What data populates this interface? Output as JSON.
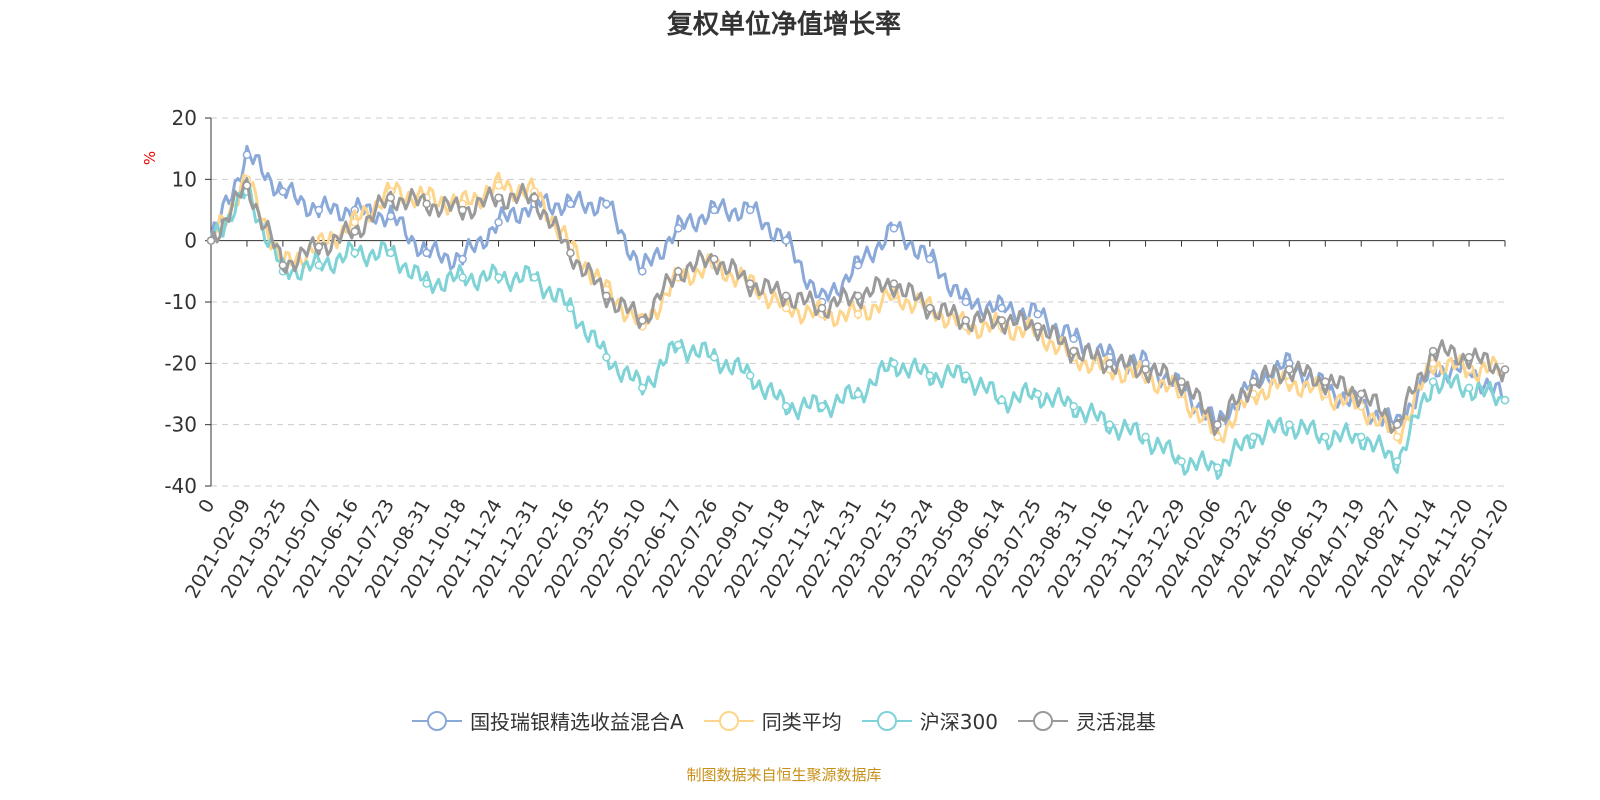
{
  "footer": "制图数据来自恒生聚源数据库",
  "chart_data": {
    "type": "line",
    "title": "复权单位净值增长率",
    "ylabel": "%",
    "ylim": [
      -40,
      20
    ],
    "yticks": [
      20,
      10,
      0,
      -10,
      -20,
      -30,
      -40
    ],
    "grid": true,
    "legend_position": "bottom",
    "categories": [
      "0",
      "2021-02-09",
      "2021-03-25",
      "2021-05-07",
      "2021-06-16",
      "2021-07-23",
      "2021-08-31",
      "2021-10-18",
      "2021-11-24",
      "2021-12-31",
      "2022-02-16",
      "2022-03-25",
      "2022-05-10",
      "2022-06-17",
      "2022-07-26",
      "2022-09-01",
      "2022-10-18",
      "2022-11-24",
      "2022-12-31",
      "2023-02-15",
      "2023-03-24",
      "2023-05-08",
      "2023-06-14",
      "2023-07-25",
      "2023-08-31",
      "2023-10-16",
      "2023-11-22",
      "2023-12-29",
      "2024-02-06",
      "2024-03-22",
      "2024-05-06",
      "2024-06-13",
      "2024-07-19",
      "2024-08-27",
      "2024-10-14",
      "2024-11-20",
      "2025-01-20"
    ],
    "series": [
      {
        "name": "国投瑞银精选收益混合A",
        "color": "#8aa9d9",
        "values": [
          0,
          14,
          8,
          5,
          5,
          4,
          -2,
          -3,
          3,
          6,
          6,
          6,
          -5,
          2,
          5,
          5,
          0,
          -10,
          -4,
          2,
          -3,
          -10,
          -11,
          -12,
          -16,
          -19,
          -20,
          -24,
          -30,
          -23,
          -20,
          -24,
          -27,
          -30,
          -21,
          -21,
          -26
        ]
      },
      {
        "name": "同类平均",
        "color": "#fdd58c",
        "values": [
          0,
          10,
          -4,
          -1,
          3,
          8,
          7,
          6,
          9,
          8,
          -1,
          -8,
          -14,
          -6,
          -4,
          -7,
          -11,
          -12,
          -12,
          -9,
          -11,
          -14,
          -14,
          -15,
          -19,
          -21,
          -22,
          -25,
          -32,
          -25,
          -23,
          -25,
          -27,
          -32,
          -20,
          -21,
          -21
        ]
      },
      {
        "name": "沪深300",
        "color": "#7fd3d6",
        "values": [
          0,
          8,
          -5,
          -4,
          -2,
          -2,
          -7,
          -6,
          -6,
          -6,
          -11,
          -19,
          -24,
          -17,
          -19,
          -22,
          -27,
          -27,
          -25,
          -20,
          -22,
          -22,
          -26,
          -25,
          -27,
          -30,
          -32,
          -36,
          -37,
          -32,
          -30,
          -32,
          -32,
          -36,
          -23,
          -24,
          -26
        ]
      },
      {
        "name": "灵活混基",
        "color": "#9a9a9a",
        "values": [
          0,
          9,
          -4,
          -1,
          1.5,
          7,
          6,
          5,
          7,
          7,
          -2,
          -9,
          -13,
          -5,
          -3,
          -7,
          -9,
          -11,
          -9,
          -7,
          -11,
          -13,
          -13,
          -14,
          -18,
          -20,
          -21,
          -23,
          -30,
          -23,
          -21,
          -23,
          -25,
          -30,
          -18,
          -19,
          -21
        ]
      }
    ]
  }
}
